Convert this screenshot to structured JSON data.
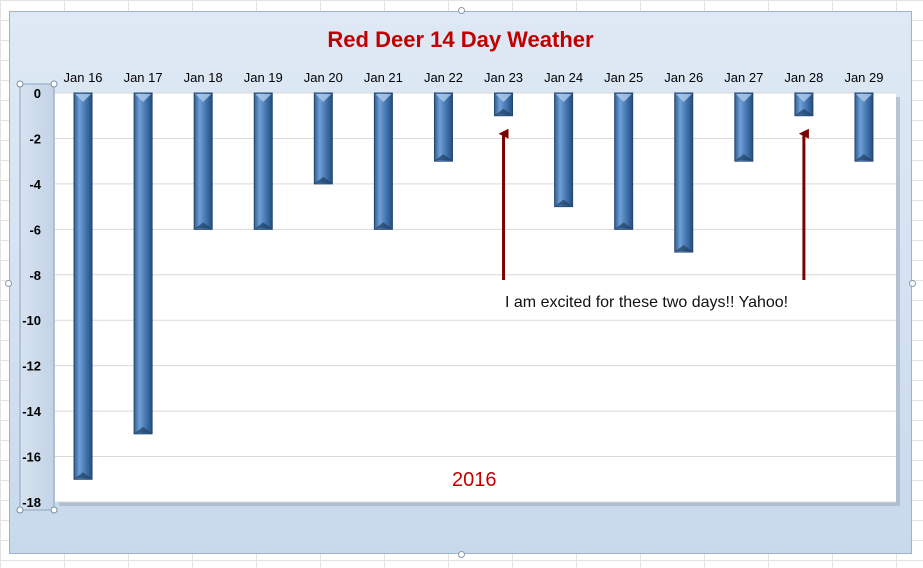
{
  "chart_data": {
    "type": "bar",
    "title": "Red Deer 14 Day Weather",
    "categories": [
      "Jan 16",
      "Jan 17",
      "Jan 18",
      "Jan 19",
      "Jan 20",
      "Jan 21",
      "Jan 22",
      "Jan 23",
      "Jan 24",
      "Jan 25",
      "Jan 26",
      "Jan 27",
      "Jan 28",
      "Jan 29"
    ],
    "values": [
      -17,
      -15,
      -6,
      -6,
      -4,
      -6,
      -3,
      -1,
      -5,
      -6,
      -7,
      -3,
      -1,
      -3
    ],
    "ylim": [
      -18,
      0
    ],
    "yticks": [
      0,
      -2,
      -4,
      -6,
      -8,
      -10,
      -12,
      -14,
      -16,
      -18
    ],
    "xaxis_position": "top",
    "grid": true,
    "legend": "none",
    "bar_color": "#4f81bd",
    "annotation_text": "I am excited for these two days!! Yahoo!",
    "annotation_targets": [
      "Jan 23",
      "Jan 28"
    ],
    "annotation_color": "#7b0000",
    "xlabel": "2016"
  },
  "colors": {
    "title": "#c00000",
    "year_label": "#c00000",
    "plot_background": "#ffffff",
    "frame_background": "#dce7f4"
  }
}
